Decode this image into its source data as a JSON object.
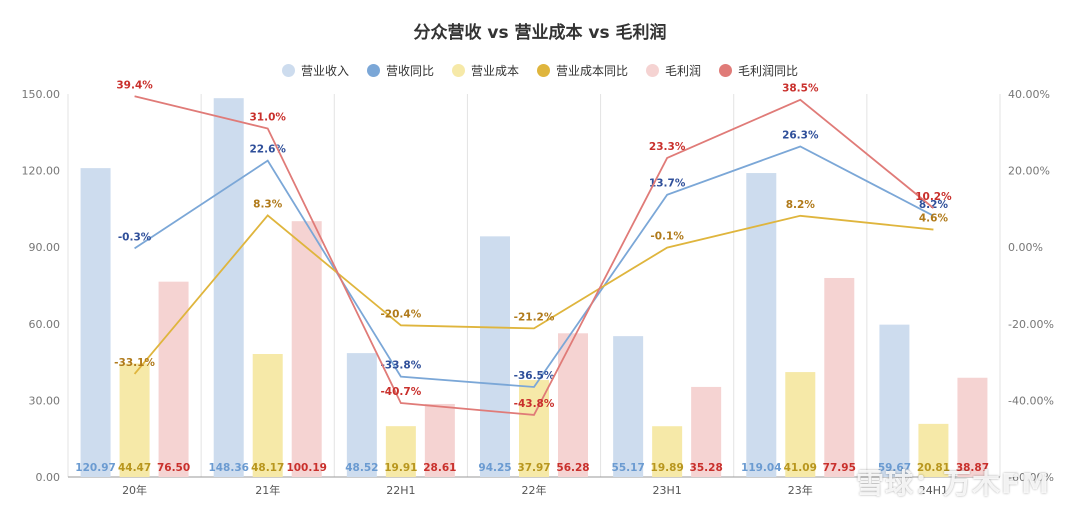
{
  "chart_data": {
    "type": "bar",
    "title": "分众营收 vs 营业成本 vs 毛利润",
    "categories": [
      "20年",
      "21年",
      "22H1",
      "22年",
      "23H1",
      "23年",
      "24H1"
    ],
    "y_left": {
      "ylim": [
        0,
        150
      ],
      "ticks": [
        "0.00",
        "30.00",
        "60.00",
        "90.00",
        "120.00",
        "150.00"
      ]
    },
    "y_right": {
      "ylim": [
        -60,
        40
      ],
      "ticks": [
        "-60.00%",
        "-40.00%",
        "-20.00%",
        "0.00%",
        "20.00%",
        "40.00%"
      ]
    },
    "legend_position": "top-center",
    "grid": "vertical",
    "bar_series": [
      {
        "name": "营业收入",
        "color": "#cddcee",
        "label_color": "#6b9bd1",
        "values": [
          120.97,
          148.36,
          48.52,
          94.25,
          55.17,
          119.04,
          59.67
        ],
        "labels": [
          "120.97",
          "148.36",
          "48.52",
          "94.25",
          "55.17",
          "119.04",
          "59.67"
        ]
      },
      {
        "name": "营业成本",
        "color": "#f6e9a8",
        "label_color": "#b8961e",
        "values": [
          44.47,
          48.17,
          19.91,
          37.97,
          19.89,
          41.09,
          20.81
        ],
        "labels": [
          "44.47",
          "48.17",
          "19.91",
          "37.97",
          "19.89",
          "41.09",
          "20.81"
        ]
      },
      {
        "name": "毛利润",
        "color": "#f5d3d2",
        "label_color": "#c9302c",
        "values": [
          76.5,
          100.19,
          28.61,
          56.28,
          35.28,
          77.95,
          38.87
        ],
        "labels": [
          "76.50",
          "100.19",
          "28.61",
          "56.28",
          "35.28",
          "77.95",
          "38.87"
        ]
      }
    ],
    "line_series": [
      {
        "name": "营收同比",
        "color": "#7ba7d7",
        "label_color": "#2f4f9a",
        "values": [
          -0.3,
          22.6,
          -33.8,
          -36.5,
          13.7,
          26.3,
          8.2
        ],
        "labels": [
          "-0.3%",
          "22.6%",
          "-33.8%",
          "-36.5%",
          "13.7%",
          "26.3%",
          "8.2%"
        ]
      },
      {
        "name": "营业成本同比",
        "color": "#dfb53d",
        "label_color": "#b07a1a",
        "values": [
          -33.1,
          8.3,
          -20.4,
          -21.2,
          -0.1,
          8.2,
          4.6
        ],
        "labels": [
          "-33.1%",
          "8.3%",
          "-20.4%",
          "-21.2%",
          "-0.1%",
          "8.2%",
          "4.6%"
        ]
      },
      {
        "name": "毛利润同比",
        "color": "#e07b78",
        "label_color": "#c9302c",
        "values": [
          39.4,
          31.0,
          -40.7,
          -43.8,
          23.3,
          38.5,
          10.2
        ],
        "labels": [
          "39.4%",
          "31.0%",
          "-40.7%",
          "-43.8%",
          "23.3%",
          "38.5%",
          "10.2%"
        ]
      }
    ],
    "legend": [
      {
        "name": "营业收入",
        "color": "#cddcee"
      },
      {
        "name": "营收同比",
        "color": "#7ba7d7"
      },
      {
        "name": "营业成本",
        "color": "#f6e9a8"
      },
      {
        "name": "营业成本同比",
        "color": "#dfb53d"
      },
      {
        "name": "毛利润",
        "color": "#f5d3d2"
      },
      {
        "name": "毛利润同比",
        "color": "#e07b78"
      }
    ]
  },
  "watermark": "雪球：万木FM"
}
